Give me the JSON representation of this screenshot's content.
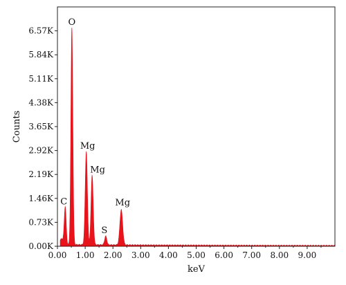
{
  "chart_data": {
    "type": "area",
    "title": "",
    "xlabel": "keV",
    "ylabel": "Counts",
    "xlim": [
      0,
      10
    ],
    "ylim": [
      0,
      7.3
    ],
    "y_unit_suffix": "K",
    "x_ticks": [
      0,
      1,
      2,
      3,
      4,
      5,
      6,
      7,
      8,
      9
    ],
    "x_tick_labels": [
      "0.00",
      "1.00",
      "2.00",
      "3.00",
      "4.00",
      "5.00",
      "6.00",
      "7.00",
      "8.00",
      "9.00"
    ],
    "y_ticks": [
      0,
      0.73,
      1.46,
      2.19,
      2.92,
      3.65,
      4.38,
      5.11,
      5.84,
      6.57
    ],
    "y_tick_labels": [
      "0.00K",
      "0.73K",
      "1.46K",
      "2.19K",
      "2.92K",
      "3.65K",
      "4.38K",
      "5.11K",
      "5.84K",
      "6.57K"
    ],
    "grid": false,
    "series_color": "#e8141c",
    "baseline_noise": 0.04,
    "peaks": [
      {
        "element": "C",
        "energy": 0.28,
        "height": 1.15,
        "width": 0.035
      },
      {
        "element": "O",
        "energy": 0.52,
        "height": 6.62,
        "width": 0.035
      },
      {
        "element": "Mg",
        "energy": 1.04,
        "height": 2.85,
        "width": 0.04
      },
      {
        "element": "Mg",
        "energy": 1.25,
        "height": 2.12,
        "width": 0.04
      },
      {
        "element": "S",
        "energy": 1.74,
        "height": 0.27,
        "width": 0.04
      },
      {
        "element": "Mg",
        "energy": 2.3,
        "height": 1.08,
        "width": 0.05
      }
    ]
  }
}
